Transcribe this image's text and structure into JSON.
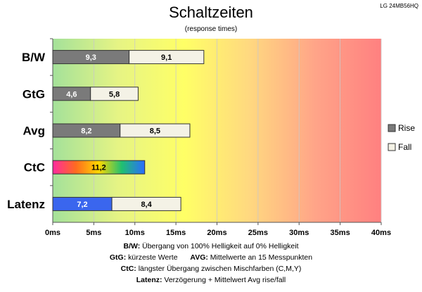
{
  "monitor_label": "LG 24MB56HQ",
  "chart_data": {
    "type": "bar",
    "title": "Schaltzeiten",
    "subtitle": "(response times)",
    "categories": [
      "B/W",
      "GtG",
      "Avg",
      "CtC",
      "Latenz"
    ],
    "series": [
      {
        "name": "Rise",
        "values": [
          9.3,
          4.6,
          8.2,
          11.2,
          7.2
        ],
        "labels": [
          "9,3",
          "4,6",
          "8,2",
          "11,2",
          "7,2"
        ]
      },
      {
        "name": "Fall",
        "values": [
          9.1,
          5.8,
          8.5,
          null,
          8.4
        ],
        "labels": [
          "9,1",
          "5,8",
          "8,5",
          "",
          "8,4"
        ]
      }
    ],
    "stacked": true,
    "xlim": [
      0,
      40
    ],
    "xticks": [
      "0ms",
      "5ms",
      "10ms",
      "15ms",
      "20ms",
      "25ms",
      "30ms",
      "35ms",
      "40ms"
    ],
    "legend_position": "right",
    "grid": true,
    "colors": {
      "rise": "#7a7a7a",
      "fall": "#f4f2e6",
      "ctc_gradient": [
        "#ff2aa0",
        "#ff6a20",
        "#ffd800",
        "#20c070",
        "#2a6cff"
      ],
      "latenz_rise": "#3a66ee",
      "background_gradient": [
        "#a4e19a",
        "#e6f484",
        "#ffff66",
        "#ffd880",
        "#ffa488",
        "#ff8080"
      ]
    }
  },
  "descriptions": [
    {
      "key": "B/W:",
      "text": "  Übergang von 100% Helligkeit auf 0% Helligkeit"
    },
    {
      "key": "GtG:",
      "text": " kürzeste  Werte",
      "key2": "AVG:",
      "text2": " Mittelwerte  an 15 Messpunkten"
    },
    {
      "key": "CtC:",
      "text": " längster Übergang  zwischen Mischfarben (C,M,Y)"
    },
    {
      "key": "Latenz:",
      "text": " Verzögerung  + Mittelwert Avg rise/fall"
    }
  ]
}
